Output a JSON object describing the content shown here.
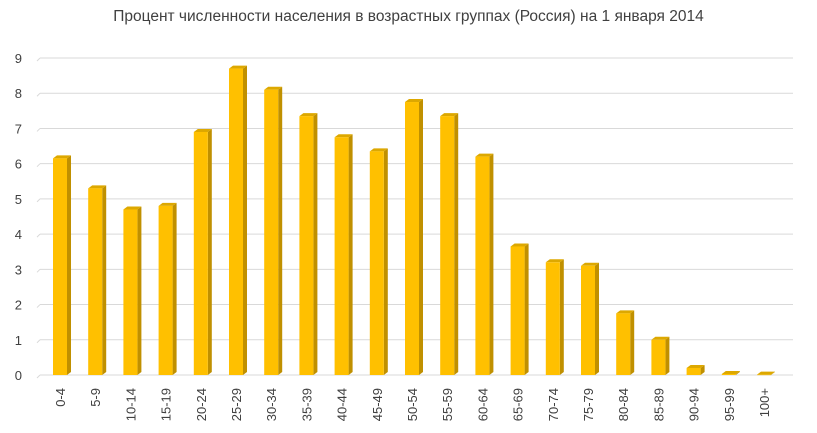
{
  "chart_data": {
    "type": "bar",
    "title": "Процент численности населения в возрастных группах (Россия) на 1 января 2014",
    "categories": [
      "0-4",
      "5-9",
      "10-14",
      "15-19",
      "20-24",
      "25-29",
      "30-34",
      "35-39",
      "40-44",
      "45-49",
      "50-54",
      "55-59",
      "60-64",
      "65-69",
      "70-74",
      "75-79",
      "80-84",
      "85-89",
      "90-94",
      "95-99",
      "100+"
    ],
    "values": [
      6.15,
      5.3,
      4.7,
      4.8,
      6.9,
      8.7,
      8.1,
      7.35,
      6.75,
      6.35,
      7.75,
      7.35,
      6.2,
      3.65,
      3.2,
      3.1,
      1.75,
      1.0,
      0.2,
      0.03,
      0.01
    ],
    "ylim": [
      0,
      9
    ],
    "yticks": [
      0,
      1,
      2,
      3,
      4,
      5,
      6,
      7,
      8,
      9
    ],
    "grid": true,
    "legend": "none",
    "colors": {
      "bar_front": "#FFC000",
      "bar_side": "#C09000",
      "bar_top": "#DDA800",
      "grid": "#D9D9D9",
      "text": "#404040"
    }
  }
}
